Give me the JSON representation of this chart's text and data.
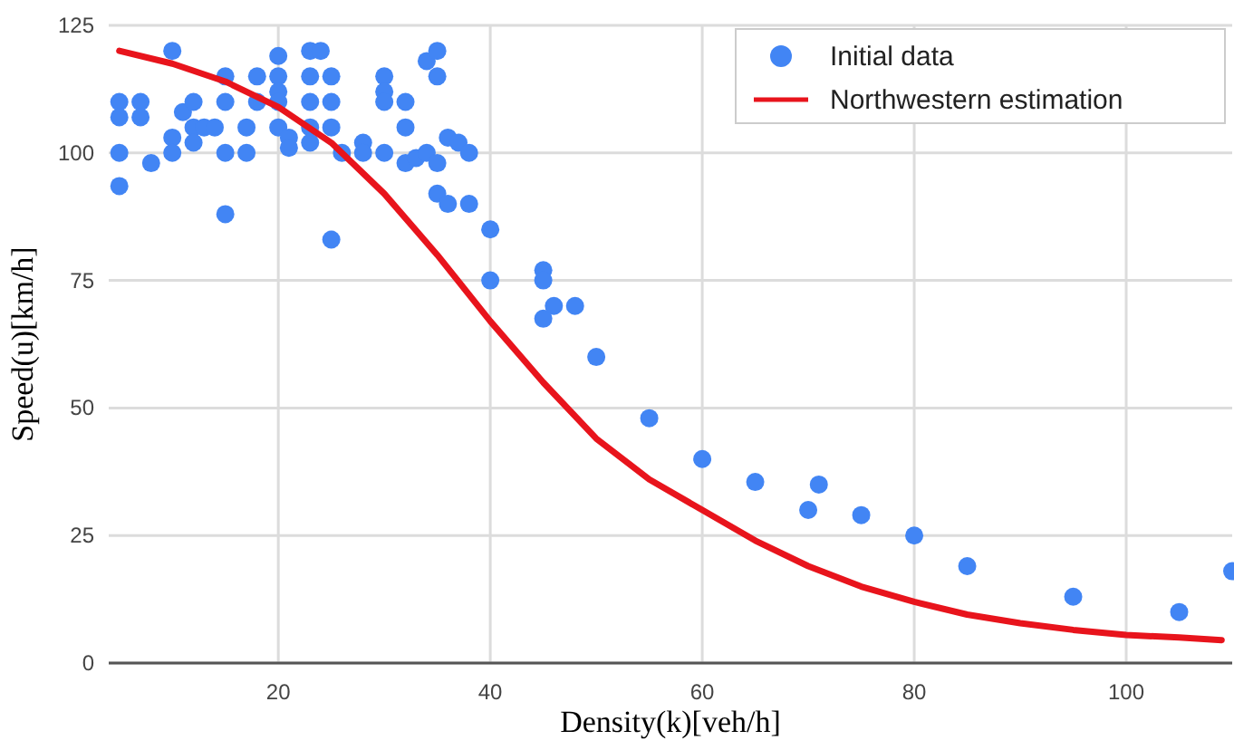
{
  "chart_data": {
    "type": "scatter",
    "xlabel": "Density(k)[veh/h]",
    "ylabel": "Speed(u)[km/h]",
    "xlim": [
      4,
      110
    ],
    "ylim": [
      0,
      125
    ],
    "xticks": [
      20,
      40,
      60,
      80,
      100
    ],
    "yticks": [
      0,
      25,
      50,
      75,
      100,
      125
    ],
    "grid": true,
    "legend": "top right",
    "series": [
      {
        "name": "Initial data",
        "marker": "circle",
        "color": "#4285f4",
        "x": [
          5,
          5,
          5,
          5,
          7,
          7,
          8,
          10,
          10,
          10,
          11,
          12,
          12,
          12,
          13,
          14,
          15,
          15,
          15,
          15,
          17,
          17,
          18,
          18,
          20,
          20,
          20,
          20,
          20,
          21,
          21,
          23,
          23,
          23,
          23,
          23,
          24,
          25,
          25,
          25,
          25,
          26,
          28,
          28,
          30,
          30,
          30,
          30,
          32,
          32,
          32,
          33,
          34,
          34,
          35,
          35,
          35,
          35,
          36,
          36,
          37,
          38,
          38,
          40,
          40,
          45,
          45,
          45,
          46,
          48,
          50,
          55,
          60,
          65,
          70,
          71,
          75,
          80,
          85,
          95,
          105,
          110
        ],
        "values": [
          110,
          107,
          100,
          93.5,
          110,
          107,
          98,
          120,
          103,
          100,
          108,
          110,
          105,
          102,
          105,
          105,
          115,
          110,
          100,
          88,
          105,
          100,
          115,
          110,
          119,
          115,
          112,
          110,
          105,
          103,
          101,
          120,
          115,
          110,
          105,
          102,
          120,
          115,
          110,
          105,
          83,
          100,
          102,
          100,
          115,
          112,
          110,
          100,
          110,
          105,
          98,
          99,
          100,
          118,
          120,
          115,
          98,
          92,
          103,
          90,
          102,
          100,
          90,
          85,
          75,
          77,
          75,
          67.5,
          70,
          70,
          60,
          48,
          40,
          35.5,
          30,
          35,
          29,
          25,
          19,
          13,
          10,
          18
        ]
      },
      {
        "name": "Northwestern estimation",
        "type": "line",
        "line_style": "solid",
        "color": "#e8141c",
        "x": [
          5,
          10,
          15,
          20,
          25,
          30,
          35,
          40,
          45,
          50,
          55,
          60,
          65,
          70,
          75,
          80,
          85,
          90,
          95,
          100,
          105,
          109
        ],
        "values": [
          120,
          117.5,
          114,
          109,
          102,
          92,
          80,
          67,
          55,
          44,
          36,
          30,
          24,
          19,
          15,
          12,
          9.5,
          7.8,
          6.5,
          5.5,
          5,
          4.5
        ]
      }
    ]
  }
}
